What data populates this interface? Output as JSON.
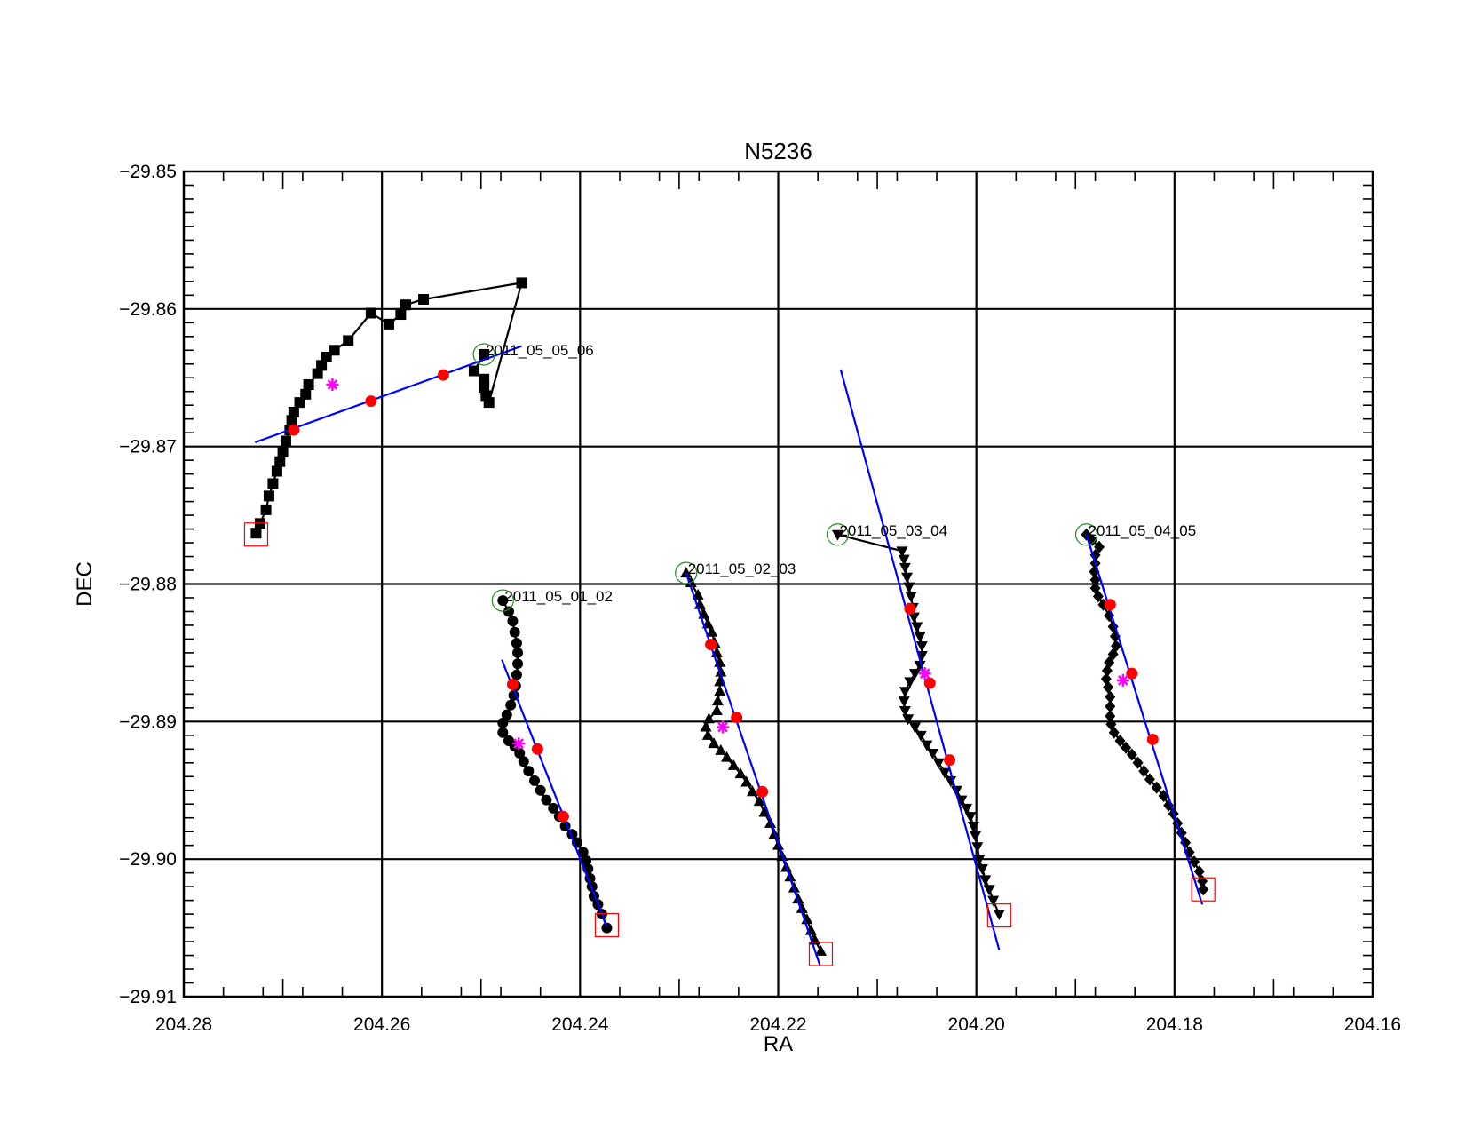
{
  "chart_data": {
    "type": "scatter",
    "title": "N5236",
    "xlabel": "RA",
    "ylabel": "DEC",
    "xlim": [
      204.28,
      204.16
    ],
    "ylim": [
      -29.91,
      -29.85
    ],
    "x_reversed": true,
    "grid": true,
    "x_ticks": [
      204.28,
      204.26,
      204.24,
      204.22,
      204.2,
      204.18,
      204.16
    ],
    "x_tick_labels": [
      "204.28",
      "204.26",
      "204.24",
      "204.22",
      "204.20",
      "204.18",
      "204.16"
    ],
    "y_ticks": [
      -29.85,
      -29.86,
      -29.87,
      -29.88,
      -29.89,
      -29.9,
      -29.91
    ],
    "y_tick_labels": [
      "−29.85",
      "−29.86",
      "−29.87",
      "−29.88",
      "−29.89",
      "−29.90",
      "−29.91"
    ],
    "colors": {
      "track": "#000000",
      "fit_line": "#0000ff",
      "fit_points": "#ff0000",
      "mean_point": "#ff00ff",
      "start_marker": "#228b22",
      "end_marker": "#ff0000"
    },
    "series": [
      {
        "name": "2011_05_05_06",
        "marker": "square",
        "label_at": [
          204.2497,
          -29.8633
        ],
        "points": [
          [
            204.2497,
            -29.8633
          ],
          [
            204.2507,
            -29.8645
          ],
          [
            204.2497,
            -29.8651
          ],
          [
            204.2497,
            -29.8657
          ],
          [
            204.2495,
            -29.8663
          ],
          [
            204.2492,
            -29.8668
          ],
          [
            204.2459,
            -29.8581
          ],
          [
            204.2558,
            -29.8593
          ],
          [
            204.2576,
            -29.8597
          ],
          [
            204.2581,
            -29.8604
          ],
          [
            204.2593,
            -29.8611
          ],
          [
            204.2611,
            -29.8603
          ],
          [
            204.2634,
            -29.8623
          ],
          [
            204.2648,
            -29.863
          ],
          [
            204.2656,
            -29.8635
          ],
          [
            204.2661,
            -29.8641
          ],
          [
            204.2665,
            -29.8647
          ],
          [
            204.2674,
            -29.8655
          ],
          [
            204.2677,
            -29.8662
          ],
          [
            204.2683,
            -29.8668
          ],
          [
            204.2689,
            -29.8675
          ],
          [
            204.2691,
            -29.8681
          ],
          [
            204.2693,
            -29.8688
          ],
          [
            204.2697,
            -29.8696
          ],
          [
            204.27,
            -29.8704
          ],
          [
            204.2703,
            -29.8711
          ],
          [
            204.2706,
            -29.8718
          ],
          [
            204.271,
            -29.8727
          ],
          [
            204.2714,
            -29.8736
          ],
          [
            204.2717,
            -29.8746
          ],
          [
            204.2723,
            -29.8756
          ],
          [
            204.2727,
            -29.8763
          ]
        ],
        "start": [
          204.2497,
          -29.8633
        ],
        "end": [
          204.2727,
          -29.8764
        ],
        "fit_line": [
          [
            204.2728,
            -29.8697
          ],
          [
            204.2459,
            -29.8627
          ]
        ],
        "fit_points": [
          [
            204.2689,
            -29.8688
          ],
          [
            204.2611,
            -29.8667
          ],
          [
            204.2538,
            -29.8648
          ]
        ],
        "mean_point": [
          204.265,
          -29.8655
        ]
      },
      {
        "name": "2011_05_01_02",
        "marker": "circle",
        "label_at": [
          204.2478,
          -29.8812
        ],
        "points": [
          [
            204.2478,
            -29.8812
          ],
          [
            204.2472,
            -29.882
          ],
          [
            204.2468,
            -29.8827
          ],
          [
            204.2466,
            -29.8835
          ],
          [
            204.2464,
            -29.8843
          ],
          [
            204.2463,
            -29.885
          ],
          [
            204.2463,
            -29.8858
          ],
          [
            204.2464,
            -29.8866
          ],
          [
            204.2465,
            -29.8874
          ],
          [
            204.2467,
            -29.8881
          ],
          [
            204.247,
            -29.8888
          ],
          [
            204.2474,
            -29.8895
          ],
          [
            204.2478,
            -29.8901
          ],
          [
            204.2478,
            -29.8908
          ],
          [
            204.2472,
            -29.8914
          ],
          [
            204.2466,
            -29.8918
          ],
          [
            204.2461,
            -29.8923
          ],
          [
            204.2457,
            -29.8929
          ],
          [
            204.2452,
            -29.8936
          ],
          [
            204.2446,
            -29.8943
          ],
          [
            204.244,
            -29.895
          ],
          [
            204.2434,
            -29.8957
          ],
          [
            204.2427,
            -29.8963
          ],
          [
            204.2421,
            -29.8969
          ],
          [
            204.2415,
            -29.8976
          ],
          [
            204.2408,
            -29.8982
          ],
          [
            204.2403,
            -29.8988
          ],
          [
            204.2397,
            -29.8995
          ],
          [
            204.2394,
            -29.9001
          ],
          [
            204.2392,
            -29.9007
          ],
          [
            204.239,
            -29.9014
          ],
          [
            204.2388,
            -29.902
          ],
          [
            204.2386,
            -29.9027
          ],
          [
            204.2382,
            -29.9033
          ],
          [
            204.2378,
            -29.904
          ],
          [
            204.2373,
            -29.905
          ]
        ],
        "start": [
          204.2478,
          -29.8812
        ],
        "end": [
          204.2373,
          -29.9048
        ],
        "fit_line": [
          [
            204.2479,
            -29.8855
          ],
          [
            204.2373,
            -29.9049
          ]
        ],
        "fit_points": [
          [
            204.2468,
            -29.8873
          ],
          [
            204.2443,
            -29.892
          ],
          [
            204.2417,
            -29.8969
          ]
        ],
        "mean_point": [
          204.2462,
          -29.8916
        ]
      },
      {
        "name": "2011_05_02_03",
        "marker": "triangle-up",
        "label_at": [
          204.2293,
          -29.8792
        ],
        "points": [
          [
            204.2293,
            -29.8792
          ],
          [
            204.2288,
            -29.8799
          ],
          [
            204.2281,
            -29.8808
          ],
          [
            204.2279,
            -29.8815
          ],
          [
            204.2275,
            -29.8822
          ],
          [
            204.2271,
            -29.8829
          ],
          [
            204.2267,
            -29.8835
          ],
          [
            204.2264,
            -29.8843
          ],
          [
            204.2262,
            -29.885
          ],
          [
            204.2259,
            -29.8857
          ],
          [
            204.2258,
            -29.8864
          ],
          [
            204.2259,
            -29.8871
          ],
          [
            204.2259,
            -29.8878
          ],
          [
            204.2261,
            -29.8885
          ],
          [
            204.2262,
            -29.8892
          ],
          [
            204.227,
            -29.8898
          ],
          [
            204.2273,
            -29.8904
          ],
          [
            204.2271,
            -29.891
          ],
          [
            204.2265,
            -29.8916
          ],
          [
            204.2258,
            -29.8921
          ],
          [
            204.2252,
            -29.8926
          ],
          [
            204.2245,
            -29.8932
          ],
          [
            204.2238,
            -29.8938
          ],
          [
            204.2232,
            -29.8944
          ],
          [
            204.2226,
            -29.8951
          ],
          [
            204.2219,
            -29.8958
          ],
          [
            204.2214,
            -29.8966
          ],
          [
            204.2208,
            -29.8974
          ],
          [
            204.2204,
            -29.8982
          ],
          [
            204.22,
            -29.899
          ],
          [
            204.2196,
            -29.8998
          ],
          [
            204.2192,
            -29.9006
          ],
          [
            204.2188,
            -29.9013
          ],
          [
            204.2184,
            -29.9021
          ],
          [
            204.218,
            -29.9029
          ],
          [
            204.2176,
            -29.9036
          ],
          [
            204.2171,
            -29.9044
          ],
          [
            204.2167,
            -29.9052
          ],
          [
            204.2163,
            -29.9059
          ],
          [
            204.2157,
            -29.9067
          ]
        ],
        "start": [
          204.2293,
          -29.8792
        ],
        "end": [
          204.2157,
          -29.9069
        ],
        "fit_line": [
          [
            204.2293,
            -29.8792
          ],
          [
            204.2158,
            -29.9077
          ]
        ],
        "fit_points": [
          [
            204.2268,
            -29.8844
          ],
          [
            204.2242,
            -29.8897
          ],
          [
            204.2216,
            -29.8951
          ]
        ],
        "mean_point": [
          204.2256,
          -29.8904
        ]
      },
      {
        "name": "2011_05_03_04",
        "marker": "triangle-down",
        "label_at": [
          204.214,
          -29.8764
        ],
        "points": [
          [
            204.214,
            -29.8764
          ],
          [
            204.2075,
            -29.8776
          ],
          [
            204.2073,
            -29.8782
          ],
          [
            204.2072,
            -29.8788
          ],
          [
            204.207,
            -29.8795
          ],
          [
            204.2068,
            -29.8802
          ],
          [
            204.2066,
            -29.8809
          ],
          [
            204.2064,
            -29.8817
          ],
          [
            204.2063,
            -29.8824
          ],
          [
            204.206,
            -29.8831
          ],
          [
            204.2057,
            -29.8838
          ],
          [
            204.2055,
            -29.8845
          ],
          [
            204.2055,
            -29.8852
          ],
          [
            204.2057,
            -29.8859
          ],
          [
            204.2062,
            -29.8865
          ],
          [
            204.2067,
            -29.8871
          ],
          [
            204.2072,
            -29.8878
          ],
          [
            204.2073,
            -29.8885
          ],
          [
            204.2072,
            -29.8892
          ],
          [
            204.2069,
            -29.8898
          ],
          [
            204.2062,
            -29.8904
          ],
          [
            204.2056,
            -29.891
          ],
          [
            204.205,
            -29.8917
          ],
          [
            204.2044,
            -29.8923
          ],
          [
            204.2038,
            -29.893
          ],
          [
            204.2032,
            -29.8937
          ],
          [
            204.2026,
            -29.8943
          ],
          [
            204.202,
            -29.895
          ],
          [
            204.2015,
            -29.8957
          ],
          [
            204.201,
            -29.8963
          ],
          [
            204.2006,
            -29.8969
          ],
          [
            204.2003,
            -29.8976
          ],
          [
            204.2001,
            -29.8983
          ],
          [
            204.1999,
            -29.8991
          ],
          [
            204.1997,
            -29.9
          ],
          [
            204.1994,
            -29.9007
          ],
          [
            204.1991,
            -29.9015
          ],
          [
            204.1987,
            -29.9022
          ],
          [
            204.1983,
            -29.903
          ],
          [
            204.1977,
            -29.904
          ]
        ],
        "start": [
          204.214,
          -29.8764
        ],
        "end": [
          204.1977,
          -29.9041
        ],
        "fit_line": [
          [
            204.2137,
            -29.8644
          ],
          [
            204.1977,
            -29.9066
          ]
        ],
        "fit_points": [
          [
            204.2067,
            -29.8818
          ],
          [
            204.2047,
            -29.8872
          ],
          [
            204.2027,
            -29.8928
          ]
        ],
        "mean_point": [
          204.2052,
          -29.8865
        ]
      },
      {
        "name": "2011_05_04_05",
        "marker": "diamond",
        "label_at": [
          204.1889,
          -29.8764
        ],
        "points": [
          [
            204.1889,
            -29.8764
          ],
          [
            204.1883,
            -29.8768
          ],
          [
            204.1876,
            -29.8773
          ],
          [
            204.188,
            -29.8779
          ],
          [
            204.188,
            -29.8785
          ],
          [
            204.1881,
            -29.8791
          ],
          [
            204.188,
            -29.8797
          ],
          [
            204.188,
            -29.8803
          ],
          [
            204.1877,
            -29.8809
          ],
          [
            204.1872,
            -29.8815
          ],
          [
            204.1866,
            -29.8823
          ],
          [
            204.1862,
            -29.8831
          ],
          [
            204.186,
            -29.8838
          ],
          [
            204.1859,
            -29.8845
          ],
          [
            204.1862,
            -29.8851
          ],
          [
            204.1866,
            -29.8857
          ],
          [
            204.1868,
            -29.8863
          ],
          [
            204.1869,
            -29.8869
          ],
          [
            204.1867,
            -29.8875
          ],
          [
            204.1865,
            -29.8882
          ],
          [
            204.1865,
            -29.8889
          ],
          [
            204.1865,
            -29.8896
          ],
          [
            204.1864,
            -29.8902
          ],
          [
            204.1861,
            -29.8908
          ],
          [
            204.1855,
            -29.8914
          ],
          [
            204.1849,
            -29.8919
          ],
          [
            204.1843,
            -29.8924
          ],
          [
            204.1837,
            -29.893
          ],
          [
            204.1831,
            -29.8936
          ],
          [
            204.1825,
            -29.8942
          ],
          [
            204.1818,
            -29.8948
          ],
          [
            204.1811,
            -29.8954
          ],
          [
            204.1806,
            -29.8961
          ],
          [
            204.1801,
            -29.8967
          ],
          [
            204.1797,
            -29.8974
          ],
          [
            204.1793,
            -29.8981
          ],
          [
            204.1789,
            -29.8988
          ],
          [
            204.1785,
            -29.8995
          ],
          [
            204.178,
            -29.9002
          ],
          [
            204.1775,
            -29.9009
          ],
          [
            204.1772,
            -29.9016
          ],
          [
            204.1771,
            -29.9022
          ]
        ],
        "start": [
          204.1889,
          -29.8764
        ],
        "end": [
          204.1771,
          -29.9022
        ],
        "fit_line": [
          [
            204.1889,
            -29.8764
          ],
          [
            204.1772,
            -29.9033
          ]
        ],
        "fit_points": [
          [
            204.1865,
            -29.8815
          ],
          [
            204.1843,
            -29.8865
          ],
          [
            204.1822,
            -29.8913
          ]
        ],
        "mean_point": [
          204.1852,
          -29.887
        ]
      }
    ]
  }
}
